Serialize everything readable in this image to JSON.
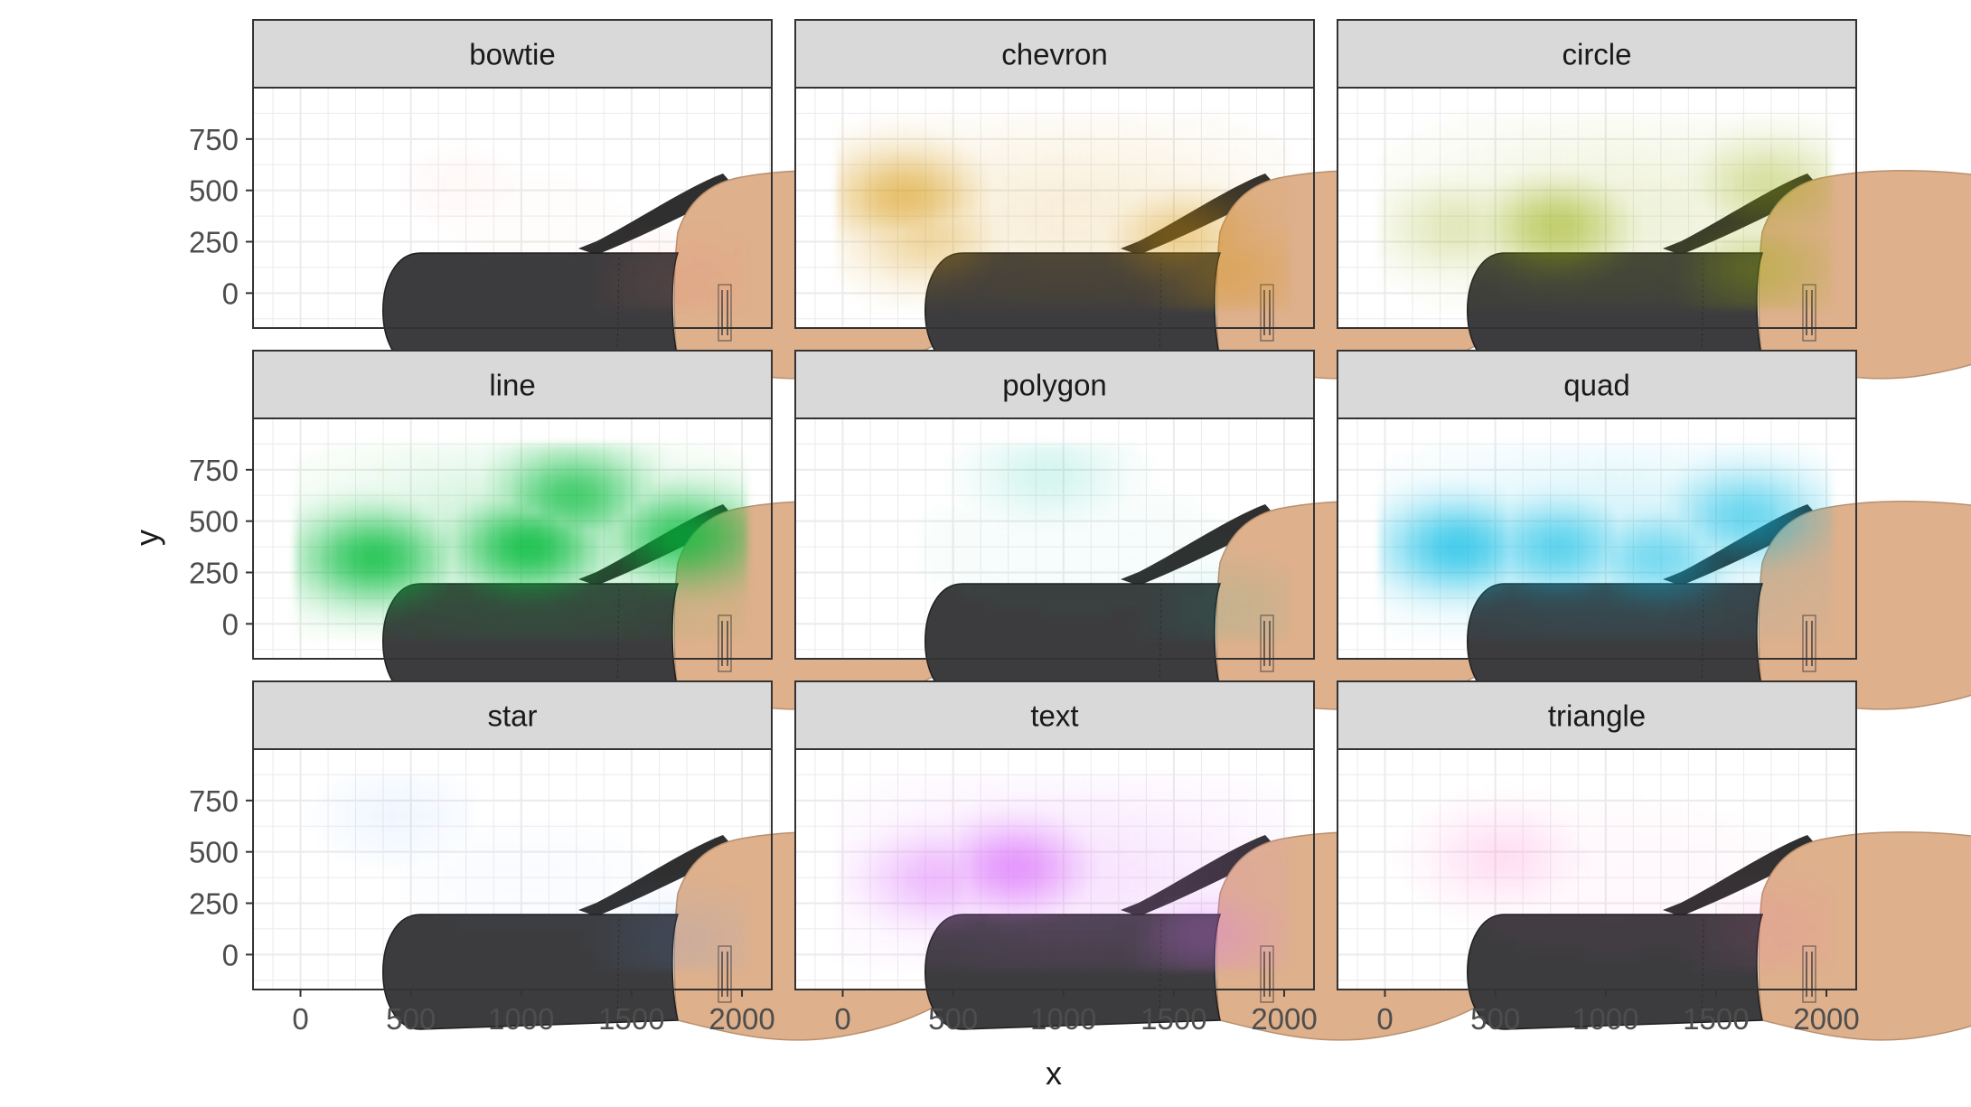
{
  "chart_data": {
    "type": "heatmap",
    "layout": "facet_wrap",
    "facet_columns": 3,
    "panels": [
      "bowtie",
      "chevron",
      "circle",
      "line",
      "polygon",
      "quad",
      "star",
      "text",
      "triangle"
    ],
    "xlabel": "x",
    "ylabel": "y",
    "xlim": [
      -215,
      2135
    ],
    "ylim": [
      -170,
      1000
    ],
    "x_ticks": [
      0,
      500,
      1000,
      1500,
      2000
    ],
    "x_tick_labels": [
      "0",
      "500",
      "1000",
      "1500",
      "2000"
    ],
    "y_ticks": [
      0,
      250,
      500,
      750
    ],
    "y_tick_labels": [
      "0",
      "250",
      "500",
      "750"
    ],
    "grid": true,
    "theme": "bw",
    "background_image": "shoe-sole",
    "series": [
      {
        "panel": "bowtie",
        "color": "#F8766D",
        "peak_alpha": 0.1,
        "hotspots": [
          [
            1700,
            30,
            0.1
          ],
          [
            700,
            500,
            0.04
          ]
        ]
      },
      {
        "panel": "chevron",
        "color": "#D39200",
        "peak_alpha": 0.55,
        "hotspots": [
          [
            250,
            450,
            0.55
          ],
          [
            1500,
            250,
            0.4
          ],
          [
            1700,
            80,
            0.3
          ],
          [
            350,
            250,
            0.35
          ]
        ]
      },
      {
        "panel": "circle",
        "color": "#93AA00",
        "peak_alpha": 0.55,
        "hotspots": [
          [
            750,
            300,
            0.55
          ],
          [
            1700,
            500,
            0.35
          ],
          [
            1650,
            100,
            0.35
          ],
          [
            300,
            300,
            0.25
          ]
        ]
      },
      {
        "panel": "line",
        "color": "#00BA38",
        "peak_alpha": 0.85,
        "hotspots": [
          [
            1000,
            350,
            0.85
          ],
          [
            300,
            300,
            0.8
          ],
          [
            1700,
            400,
            0.75
          ],
          [
            1200,
            600,
            0.7
          ]
        ]
      },
      {
        "panel": "polygon",
        "color": "#00C19F",
        "peak_alpha": 0.15,
        "hotspots": [
          [
            900,
            700,
            0.15
          ],
          [
            1700,
            50,
            0.1
          ]
        ]
      },
      {
        "panel": "quad",
        "color": "#00B9E3",
        "peak_alpha": 0.7,
        "hotspots": [
          [
            300,
            350,
            0.7
          ],
          [
            750,
            350,
            0.6
          ],
          [
            1600,
            500,
            0.55
          ],
          [
            1200,
            300,
            0.5
          ]
        ]
      },
      {
        "panel": "star",
        "color": "#619CFF",
        "peak_alpha": 0.12,
        "hotspots": [
          [
            1700,
            50,
            0.12
          ],
          [
            400,
            650,
            0.08
          ]
        ]
      },
      {
        "panel": "text",
        "color": "#DB72FB",
        "peak_alpha": 0.7,
        "hotspots": [
          [
            750,
            400,
            0.7
          ],
          [
            400,
            350,
            0.45
          ],
          [
            1600,
            80,
            0.3
          ]
        ]
      },
      {
        "panel": "triangle",
        "color": "#FF61C3",
        "peak_alpha": 0.18,
        "hotspots": [
          [
            500,
            450,
            0.18
          ],
          [
            1700,
            100,
            0.1
          ]
        ]
      }
    ]
  }
}
